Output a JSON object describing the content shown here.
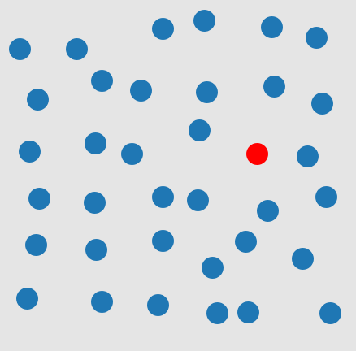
{
  "colors": {
    "background": "#e5e5e5",
    "blue_dot": "#1f77b4",
    "red_dot": "#ff0000"
  },
  "dots": [
    {
      "color": "blue"
    },
    {
      "color": "blue"
    },
    {
      "color": "blue"
    },
    {
      "color": "blue"
    },
    {
      "color": "blue"
    },
    {
      "color": "blue"
    },
    {
      "color": "blue"
    },
    {
      "color": "blue"
    },
    {
      "color": "blue"
    },
    {
      "color": "blue"
    },
    {
      "color": "blue"
    },
    {
      "color": "blue"
    },
    {
      "color": "blue"
    },
    {
      "color": "blue"
    },
    {
      "color": "blue"
    },
    {
      "color": "blue"
    },
    {
      "color": "red"
    },
    {
      "color": "blue"
    },
    {
      "color": "blue"
    },
    {
      "color": "blue"
    },
    {
      "color": "blue"
    },
    {
      "color": "blue"
    },
    {
      "color": "blue"
    },
    {
      "color": "blue"
    },
    {
      "color": "blue"
    },
    {
      "color": "blue"
    },
    {
      "color": "blue"
    },
    {
      "color": "blue"
    },
    {
      "color": "blue"
    },
    {
      "color": "blue"
    },
    {
      "color": "blue"
    },
    {
      "color": "blue"
    },
    {
      "color": "blue"
    },
    {
      "color": "blue"
    },
    {
      "color": "blue"
    },
    {
      "color": "blue"
    },
    {
      "color": "blue"
    },
    {
      "color": "blue"
    },
    {
      "color": "blue"
    },
    {
      "color": "blue"
    },
    {
      "color": "blue"
    }
  ]
}
